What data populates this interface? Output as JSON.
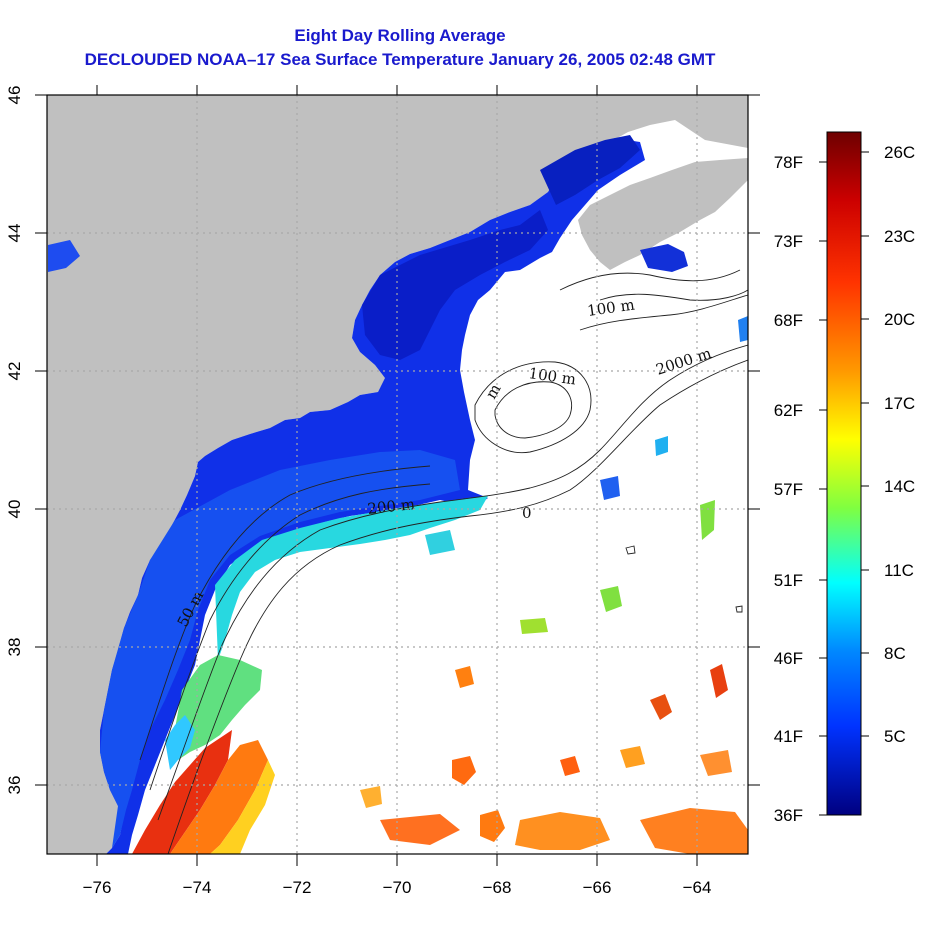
{
  "title": {
    "line1": "Eight Day Rolling Average",
    "line2": "DECLOUDED NOAA–17 Sea Surface Temperature January 26, 2005 02:48 GMT"
  },
  "map": {
    "lon_range": [
      -77,
      -63
    ],
    "lat_range": [
      35,
      46
    ],
    "x_ticks": [
      "−76",
      "−74",
      "−72",
      "−70",
      "−68",
      "−66",
      "−64"
    ],
    "y_ticks": [
      "36",
      "38",
      "40",
      "42",
      "44",
      "46"
    ],
    "grid": "dotted at 2° intervals",
    "land_color": "#c0c0c0",
    "no_data_color": "#ffffff"
  },
  "contour_labels": {
    "c50": "50 m",
    "c100a": "100 m",
    "c100b": "100 m",
    "c200": "200 m",
    "c2000": "2000 m",
    "c_m": "m",
    "c_0": "0"
  },
  "colorbar": {
    "celsius": [
      "26C",
      "23C",
      "20C",
      "17C",
      "14C",
      "11C",
      "8C",
      "5C"
    ],
    "fahrenheit": [
      "78F",
      "73F",
      "68F",
      "62F",
      "57F",
      "51F",
      "46F",
      "41F",
      "36F"
    ],
    "gradient": [
      "#7a0000",
      "#cc0000",
      "#ff3300",
      "#ff9900",
      "#ffff00",
      "#80ff40",
      "#00ffff",
      "#0088ff",
      "#0033ff",
      "#000099"
    ]
  }
}
